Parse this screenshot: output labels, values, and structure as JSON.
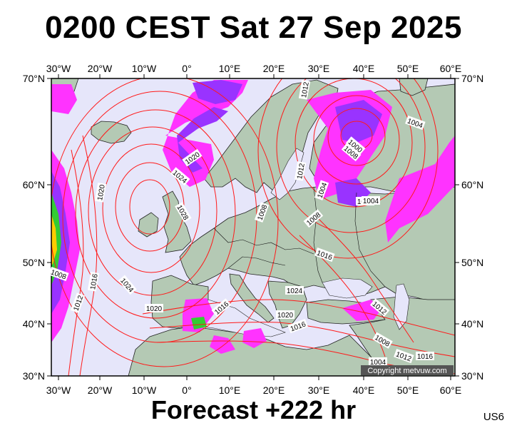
{
  "title": "0200 CEST Sat 27 Sep 2025",
  "footer": "Forecast +222 hr",
  "model_code": "US6",
  "copyright": "Copyright metvuw.com",
  "axes": {
    "lon_labels": [
      "30°W",
      "20°W",
      "10°W",
      "0°",
      "10°E",
      "20°E",
      "30°E",
      "40°E",
      "50°E",
      "60°E"
    ],
    "lat_labels": [
      "70°N",
      "60°N",
      "50°N",
      "40°N",
      "30°N"
    ]
  },
  "isobar_labels": [
    "1020",
    "1024",
    "1028",
    "1016",
    "1024",
    "1020",
    "1012",
    "1008",
    "1020",
    "1016",
    "1012",
    "1008",
    "1004",
    "1000",
    "1012",
    "1016",
    "1024",
    "1020",
    "1016",
    "1012",
    "1008",
    "1004",
    "1008",
    "1012",
    "1016",
    "1004",
    "1000",
    "1004",
    "1008"
  ],
  "colors": {
    "ocean": "#e6e6fa",
    "land": "#b4c9b4",
    "isobar": "#ff1a1a",
    "precip_light": "#ff33ff",
    "precip_mid": "#9933ff",
    "precip_heavy": "#3366ff"
  }
}
